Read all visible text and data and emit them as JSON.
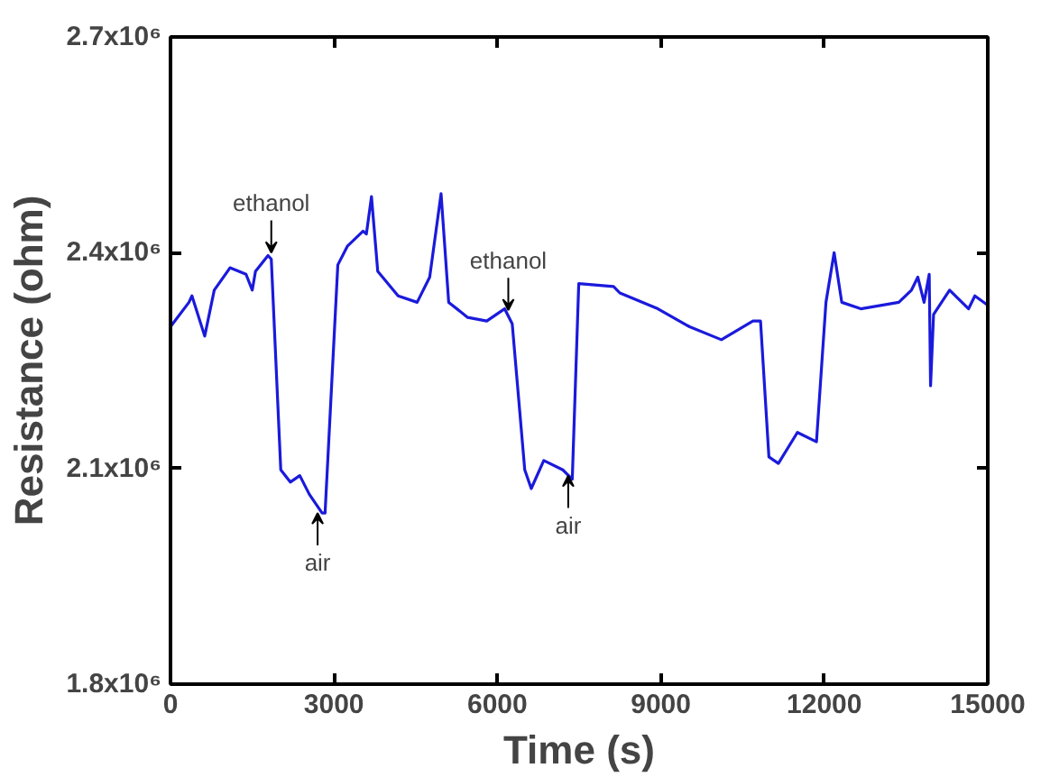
{
  "chart_data": {
    "type": "line",
    "xlabel": "Time (s)",
    "ylabel": "Resistance (ohm)",
    "xlim": [
      0,
      15000
    ],
    "xticks": [
      0,
      3000,
      6000,
      9000,
      12000,
      15000
    ],
    "ylim": [
      1800000,
      2700000
    ],
    "yticks": [
      {
        "value": 1800000,
        "label": "1.8x10⁶"
      },
      {
        "value": 2100000,
        "label": "2.1x10⁶"
      },
      {
        "value": 2400000,
        "label": "2.4x10⁶"
      },
      {
        "value": 2700000,
        "label": "2.7x10⁶"
      }
    ],
    "grid": false,
    "marker": "none",
    "line_style": "solid",
    "series": [
      {
        "color": "#1a1adc",
        "x": [
          0,
          339,
          394,
          628,
          803,
          1092,
          1386,
          1501,
          1560,
          1790,
          1850,
          2024,
          2199,
          2373,
          2548,
          2782,
          2837,
          3071,
          3246,
          3535,
          3595,
          3689,
          3804,
          4178,
          4527,
          4757,
          4966,
          5106,
          5455,
          5804,
          6132,
          6272,
          6502,
          6621,
          6851,
          7200,
          7374,
          7493,
          8132,
          8247,
          8945,
          9528,
          10111,
          10690,
          10829,
          10983,
          11157,
          11506,
          11856,
          12030,
          12180,
          12320,
          12669,
          13367,
          13600,
          13716,
          13831,
          13925,
          13950,
          14005,
          14299,
          14648,
          14763,
          14997
        ],
        "values": [
          2297000,
          2331000,
          2340000,
          2284000,
          2348000,
          2379000,
          2370000,
          2348000,
          2374000,
          2396000,
          2391000,
          2098000,
          2081000,
          2090000,
          2064000,
          2038000,
          2038000,
          2383000,
          2409000,
          2430000,
          2426000,
          2478000,
          2374000,
          2340000,
          2331000,
          2366000,
          2482000,
          2331000,
          2310000,
          2305000,
          2322000,
          2301000,
          2098000,
          2072000,
          2111000,
          2098000,
          2085000,
          2357000,
          2353000,
          2344000,
          2322000,
          2297000,
          2279000,
          2305000,
          2305000,
          2116000,
          2107000,
          2150000,
          2137000,
          2331000,
          2400000,
          2331000,
          2322000,
          2331000,
          2348000,
          2366000,
          2331000,
          2370000,
          2215000,
          2314000,
          2348000,
          2322000,
          2340000,
          2327000
        ]
      }
    ],
    "annotations": [
      {
        "text": "ethanol",
        "x": 1850,
        "y": 2400000
      },
      {
        "text": "air",
        "x": 2700,
        "y": 2038000
      },
      {
        "text": "ethanol",
        "x": 6200,
        "y": 2320000
      },
      {
        "text": "air",
        "x": 7300,
        "y": 2090000
      }
    ]
  }
}
